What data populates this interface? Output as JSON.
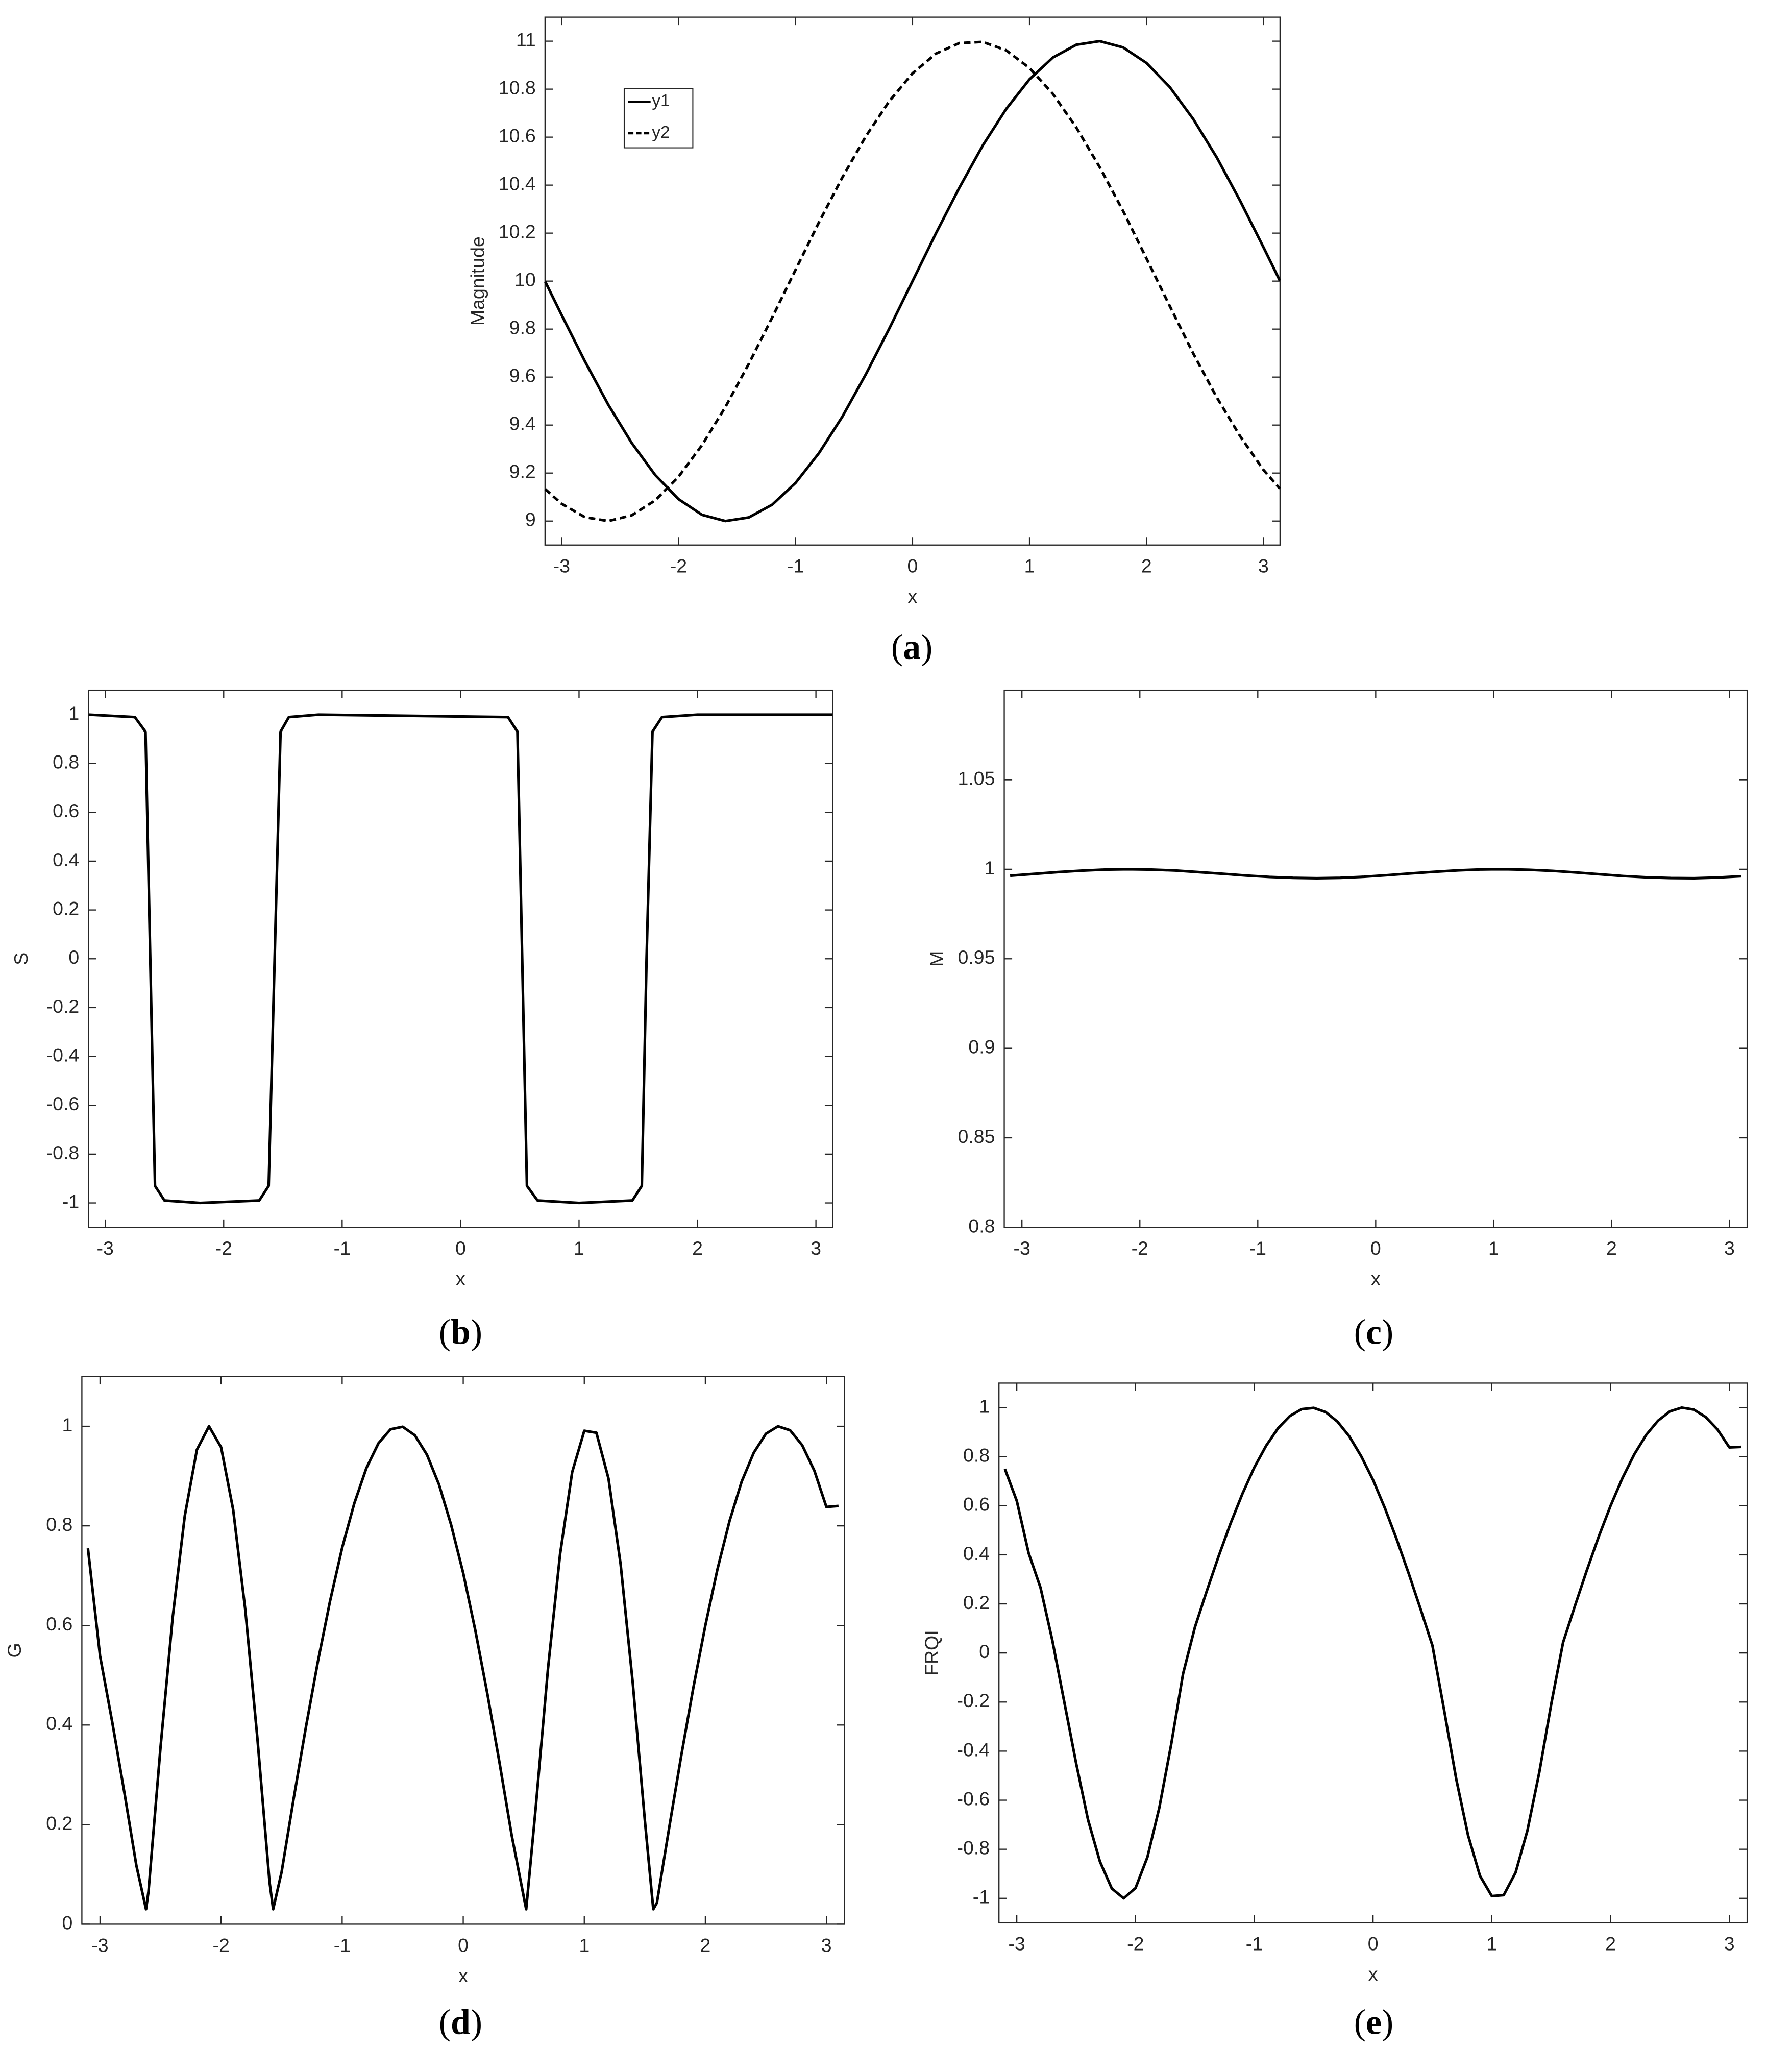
{
  "chart_data": [
    {
      "type": "line",
      "panel_label": "(a)",
      "xlabel": "x",
      "ylabel": "Magnitude",
      "x": [
        -3.14,
        -3.0,
        -2.8,
        -2.6,
        -2.4,
        -2.2,
        -2.0,
        -1.8,
        -1.6,
        -1.4,
        -1.2,
        -1.0,
        -0.8,
        -0.6,
        -0.4,
        -0.2,
        0,
        0.2,
        0.4,
        0.6,
        0.8,
        1.0,
        1.2,
        1.4,
        1.6,
        1.8,
        2.0,
        2.2,
        2.4,
        2.6,
        2.8,
        3.0,
        3.14
      ],
      "series": [
        {
          "name": "y1",
          "color": "#000000",
          "linestyle": "solid",
          "values": [
            9.998,
            9.859,
            9.665,
            9.484,
            9.325,
            9.192,
            9.091,
            9.026,
            9.0,
            9.015,
            9.068,
            9.159,
            9.283,
            9.435,
            9.611,
            9.801,
            10,
            10.199,
            10.389,
            10.565,
            10.717,
            10.841,
            10.932,
            10.985,
            11.0,
            10.974,
            10.909,
            10.808,
            10.675,
            10.516,
            10.335,
            10.141,
            10.002
          ]
        },
        {
          "name": "y2",
          "color": "#000000",
          "linestyle": "dashed",
          "values": [
            9.133,
            9.072,
            9.016,
            9.0,
            9.024,
            9.086,
            9.185,
            9.316,
            9.475,
            9.655,
            9.848,
            10.047,
            10.245,
            10.432,
            10.603,
            10.749,
            10.866,
            10.948,
            10.992,
            10.997,
            10.962,
            10.888,
            10.78,
            10.64,
            10.475,
            10.292,
            10.094,
            9.895,
            9.698,
            9.516,
            9.354,
            9.213,
            9.135
          ]
        }
      ],
      "legend": "upper left",
      "xlim": [
        -3.1416,
        3.1416
      ],
      "ylim": [
        8.9,
        11.1
      ],
      "xticks": [
        -3,
        -2,
        -1,
        0,
        1,
        2,
        3
      ],
      "yticks": [
        9,
        9.2,
        9.4,
        9.6,
        9.8,
        10,
        10.2,
        10.4,
        10.6,
        10.8,
        11
      ]
    },
    {
      "type": "line",
      "panel_label": "(b)",
      "xlabel": "x",
      "ylabel": "S",
      "color": "#000000",
      "x": [
        -3.14,
        -2.75,
        -2.66,
        -2.62,
        -2.58,
        -2.5,
        -2.2,
        -1.7,
        -1.62,
        -1.57,
        -1.52,
        -1.45,
        -1.2,
        0.4,
        0.48,
        0.52,
        0.56,
        0.65,
        1.0,
        1.45,
        1.53,
        1.57,
        1.62,
        1.7,
        2.0,
        3.14
      ],
      "values": [
        1,
        0.99,
        0.93,
        0,
        -0.93,
        -0.99,
        -1,
        -0.99,
        -0.93,
        0,
        0.93,
        0.99,
        1,
        0.99,
        0.93,
        0,
        -0.93,
        -0.99,
        -1,
        -0.99,
        -0.93,
        0,
        0.93,
        0.99,
        1,
        1
      ],
      "xlim": [
        -3.1416,
        3.1416
      ],
      "ylim": [
        -1.1,
        1.1
      ],
      "xticks": [
        -3,
        -2,
        -1,
        0,
        1,
        2,
        3
      ],
      "yticks": [
        -1,
        -0.8,
        -0.6,
        -0.4,
        -0.2,
        0,
        0.2,
        0.4,
        0.6,
        0.8,
        1
      ]
    },
    {
      "type": "line",
      "panel_label": "(c)",
      "xlabel": "x",
      "ylabel": "M",
      "color": "#000000",
      "x": [
        -3.1,
        -2.9,
        -2.7,
        -2.5,
        -2.3,
        -2.1,
        -1.9,
        -1.7,
        -1.5,
        -1.3,
        -1.1,
        -0.9,
        -0.7,
        -0.5,
        -0.3,
        -0.1,
        0.1,
        0.3,
        0.5,
        0.7,
        0.9,
        1.1,
        1.3,
        1.5,
        1.7,
        1.9,
        2.1,
        2.3,
        2.5,
        2.7,
        2.9,
        3.1
      ],
      "values": [
        0.9964,
        0.9974,
        0.9984,
        0.9992,
        0.9998,
        1.0,
        0.9998,
        0.9993,
        0.9984,
        0.9975,
        0.9965,
        0.9957,
        0.9952,
        0.995,
        0.9952,
        0.9958,
        0.9967,
        0.9977,
        0.9986,
        0.9994,
        0.9999,
        1.0,
        0.9997,
        0.9991,
        0.9982,
        0.9972,
        0.9962,
        0.9955,
        0.9951,
        0.995,
        0.9954,
        0.9961
      ],
      "xlim": [
        -3.15,
        3.15
      ],
      "ylim": [
        0.8,
        1.1
      ],
      "xticks": [
        -3,
        -2,
        -1,
        0,
        1,
        2,
        3
      ],
      "yticks": [
        0.8,
        0.85,
        0.9,
        0.95,
        1,
        1.05
      ]
    },
    {
      "type": "line",
      "panel_label": "(d)",
      "xlabel": "x",
      "ylabel": "G",
      "color": "#000000",
      "x": [
        -3.1,
        -3.0,
        -2.9,
        -2.8,
        -2.7,
        -2.62,
        -2.6,
        -2.5,
        -2.4,
        -2.3,
        -2.2,
        -2.1,
        -2.0,
        -1.9,
        -1.8,
        -1.7,
        -1.6,
        -1.57,
        -1.5,
        -1.4,
        -1.3,
        -1.2,
        -1.1,
        -1.0,
        -0.9,
        -0.8,
        -0.7,
        -0.6,
        -0.5,
        -0.4,
        -0.3,
        -0.2,
        -0.1,
        0,
        0.1,
        0.2,
        0.3,
        0.4,
        0.52,
        0.6,
        0.7,
        0.8,
        0.9,
        1.0,
        1.1,
        1.2,
        1.3,
        1.4,
        1.5,
        1.57,
        1.6,
        1.7,
        1.8,
        1.9,
        2.0,
        2.1,
        2.2,
        2.3,
        2.4,
        2.5,
        2.6,
        2.7,
        2.8,
        2.9,
        3.0,
        3.1
      ],
      "values": [
        0.755,
        0.539,
        0.407,
        0.266,
        0.118,
        0.03,
        0.065,
        0.356,
        0.616,
        0.82,
        0.953,
        1.0,
        0.958,
        0.832,
        0.631,
        0.373,
        0.085,
        0.03,
        0.105,
        0.253,
        0.395,
        0.528,
        0.649,
        0.756,
        0.845,
        0.916,
        0.966,
        0.994,
        0.999,
        0.982,
        0.943,
        0.883,
        0.802,
        0.705,
        0.59,
        0.462,
        0.324,
        0.179,
        0.03,
        0.237,
        0.513,
        0.743,
        0.908,
        0.991,
        0.987,
        0.895,
        0.723,
        0.486,
        0.209,
        0.03,
        0.043,
        0.192,
        0.337,
        0.474,
        0.6,
        0.713,
        0.81,
        0.889,
        0.947,
        0.985,
        1.0,
        0.992,
        0.962,
        0.911,
        0.838,
        0.84
      ],
      "xlim": [
        -3.15,
        3.15
      ],
      "ylim": [
        0,
        1.1
      ],
      "xticks": [
        -3,
        -2,
        -1,
        0,
        1,
        2,
        3
      ],
      "yticks": [
        0,
        0.2,
        0.4,
        0.6,
        0.8,
        1
      ]
    },
    {
      "type": "line",
      "panel_label": "(e)",
      "xlabel": "x",
      "ylabel": "FRQI",
      "color": "#000000",
      "x": [
        -3.1,
        -3.0,
        -2.9,
        -2.8,
        -2.7,
        -2.6,
        -2.5,
        -2.4,
        -2.3,
        -2.2,
        -2.1,
        -2.0,
        -1.9,
        -1.8,
        -1.7,
        -1.6,
        -1.5,
        -1.4,
        -1.3,
        -1.2,
        -1.1,
        -1.0,
        -0.9,
        -0.8,
        -0.7,
        -0.6,
        -0.5,
        -0.4,
        -0.3,
        -0.2,
        -0.1,
        0,
        0.1,
        0.2,
        0.3,
        0.4,
        0.5,
        0.6,
        0.7,
        0.8,
        0.9,
        1.0,
        1.1,
        1.2,
        1.3,
        1.4,
        1.5,
        1.6,
        1.7,
        1.8,
        1.9,
        2.0,
        2.1,
        2.2,
        2.3,
        2.4,
        2.5,
        2.6,
        2.7,
        2.8,
        2.9,
        3.0,
        3.1
      ],
      "values": [
        0.75,
        0.62,
        0.407,
        0.266,
        0.05,
        -0.2,
        -0.45,
        -0.68,
        -0.85,
        -0.96,
        -1.0,
        -0.958,
        -0.832,
        -0.631,
        -0.373,
        -0.085,
        0.105,
        0.253,
        0.395,
        0.528,
        0.649,
        0.756,
        0.845,
        0.916,
        0.966,
        0.994,
        0.999,
        0.982,
        0.943,
        0.883,
        0.802,
        0.705,
        0.59,
        0.462,
        0.324,
        0.179,
        0.03,
        -0.237,
        -0.513,
        -0.743,
        -0.908,
        -0.991,
        -0.987,
        -0.895,
        -0.723,
        -0.486,
        -0.209,
        0.043,
        0.192,
        0.337,
        0.474,
        0.6,
        0.713,
        0.81,
        0.889,
        0.947,
        0.985,
        1.0,
        0.992,
        0.962,
        0.911,
        0.838,
        0.84
      ],
      "xlim": [
        -3.15,
        3.15
      ],
      "ylim": [
        -1.1,
        1.1
      ],
      "xticks": [
        -3,
        -2,
        -1,
        0,
        1,
        2,
        3
      ],
      "yticks": [
        -1,
        -0.8,
        -0.6,
        -0.4,
        -0.2,
        0,
        0.2,
        0.4,
        0.6,
        0.8,
        1
      ]
    }
  ]
}
